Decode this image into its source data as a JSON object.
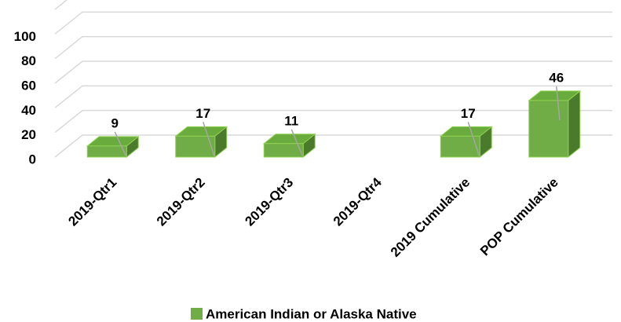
{
  "chart_data": {
    "type": "bar3d",
    "categories": [
      "2019-Qtr1",
      "2019-Qtr2",
      "2019-Qtr3",
      "2019-Qtr4",
      "2019 Cumulative",
      "POP Cumulative"
    ],
    "series": [
      {
        "name": "American Indian or Alaska Native",
        "color": "#70ad47",
        "values": [
          9,
          17,
          11,
          null,
          17,
          46
        ]
      }
    ],
    "ylim": [
      0,
      120
    ],
    "yticks": [
      0,
      20,
      40,
      60,
      80,
      100
    ],
    "grid": true,
    "legend": "bottom"
  }
}
